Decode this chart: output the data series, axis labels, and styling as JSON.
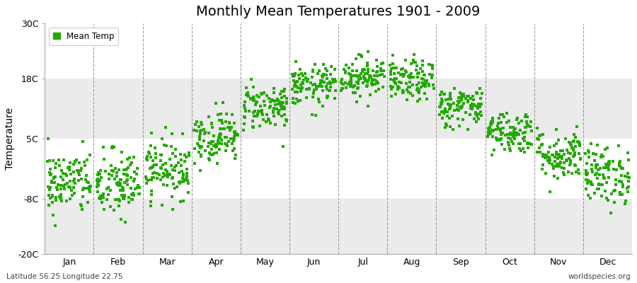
{
  "title": "Monthly Mean Temperatures 1901 - 2009",
  "ylabel": "Temperature",
  "bottom_left": "Latitude 56.25 Longitude 22.75",
  "bottom_right": "worldspecies.org",
  "legend_label": "Mean Temp",
  "dot_color": "#22aa00",
  "plot_bg_color": "#ffffff",
  "fig_bg_color": "#ffffff",
  "band_color": "#ebebeb",
  "ylim": [
    -20,
    30
  ],
  "yticks": [
    -20,
    -8,
    5,
    18,
    30
  ],
  "ytick_labels": [
    "-20C",
    "-8C",
    "5C",
    "18C",
    "30C"
  ],
  "months": [
    "Jan",
    "Feb",
    "Mar",
    "Apr",
    "May",
    "Jun",
    "Jul",
    "Aug",
    "Sep",
    "Oct",
    "Nov",
    "Dec"
  ],
  "monthly_means": [
    -4.5,
    -5.0,
    -1.5,
    5.5,
    12.0,
    16.5,
    18.5,
    17.5,
    12.0,
    6.5,
    1.5,
    -2.8
  ],
  "monthly_stds": [
    3.5,
    3.8,
    3.2,
    2.8,
    2.5,
    2.2,
    2.2,
    2.2,
    2.2,
    2.3,
    2.8,
    3.2
  ],
  "num_years": 109,
  "seed": 42,
  "vline_color": "#888888",
  "spine_color": "#aaaaaa",
  "title_fontsize": 14,
  "axis_fontsize": 9,
  "ylabel_fontsize": 10,
  "dot_size": 6
}
